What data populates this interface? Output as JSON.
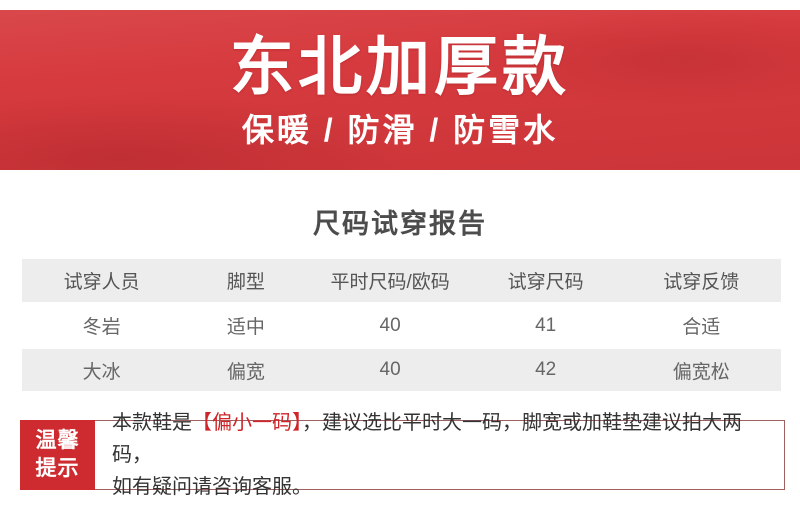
{
  "banner": {
    "title": "东北加厚款",
    "subtitle": "保暖 / 防滑 / 防雪水",
    "bg_color": "#d63a3e",
    "text_color": "#ffffff"
  },
  "report": {
    "title": "尺码试穿报告",
    "table": {
      "headers": [
        "试穿人员",
        "脚型",
        "平时尺码/欧码",
        "试穿尺码",
        "试穿反馈"
      ],
      "rows": [
        [
          "冬岩",
          "适中",
          "40",
          "41",
          "合适"
        ],
        [
          "大冰",
          "偏宽",
          "40",
          "42",
          "偏宽松"
        ]
      ],
      "stripe_color": "#ededed"
    }
  },
  "tip": {
    "label_line1": "温馨",
    "label_line2": "提示",
    "text_prefix": "本款鞋是",
    "text_highlight": "【偏小一码】",
    "text_line1_rest": "，建议选比平时大一码，脚宽或加鞋垫建议拍大两码，",
    "text_line2": "如有疑问请咨询客服。",
    "label_bg": "#ce2b30",
    "highlight_color": "#cf2428",
    "border_color": "#a06060"
  }
}
